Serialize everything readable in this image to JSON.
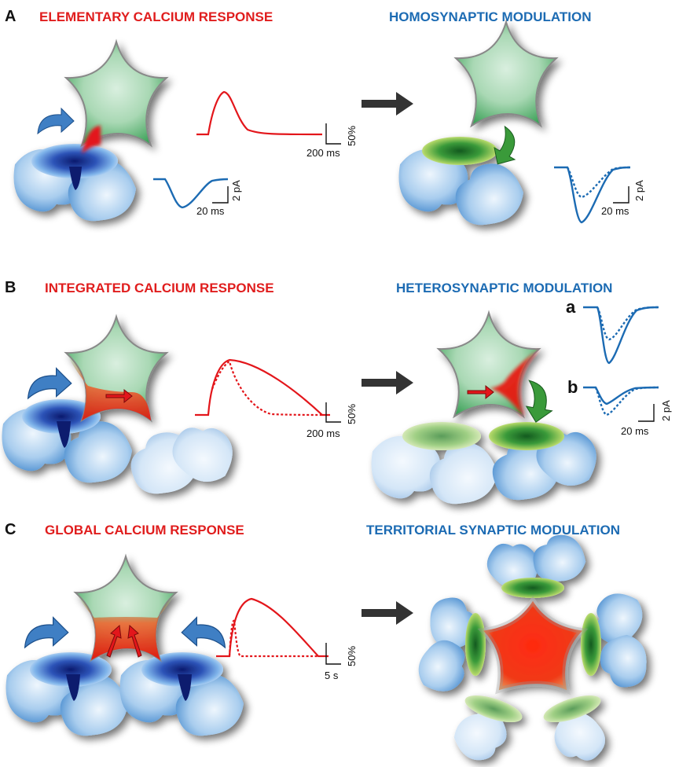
{
  "panels": [
    {
      "letter": "A",
      "left_title": "ELEMENTARY CALCIUM RESPONSE",
      "right_title": "HOMOSYNAPTIC MODULATION",
      "calcium_scale": {
        "y": "50%",
        "x": "200 ms"
      },
      "current_scale_left": {
        "y": "2 pA",
        "x": "20 ms"
      },
      "current_scale_right": {
        "y": "2 pA",
        "x": "20 ms"
      }
    },
    {
      "letter": "B",
      "left_title": "INTEGRATED CALCIUM RESPONSE",
      "right_title": "HETEROSYNAPTIC MODULATION",
      "calcium_scale": {
        "y": "50%",
        "x": "200 ms"
      },
      "trace_labels": [
        "a",
        "b"
      ],
      "current_scale": {
        "y": "2 pA",
        "x": "20 ms"
      }
    },
    {
      "letter": "C",
      "left_title": "GLOBAL CALCIUM RESPONSE",
      "right_title": "TERRITORIAL SYNAPTIC MODULATION",
      "calcium_scale": {
        "y": "50%",
        "x": "5 s"
      }
    }
  ],
  "colors": {
    "calcium_red": "#e3161b",
    "synaptic_blue": "#1c6bb3",
    "astrocyte_green": "#6fbf7f",
    "arrow_dark": "#333333",
    "arrow_blue": "#3f7fc4",
    "arrow_green": "#3a9a3a"
  },
  "icons": [
    "astrocyte-star",
    "synapse-terminal",
    "curved-arrow",
    "process-arrow"
  ]
}
